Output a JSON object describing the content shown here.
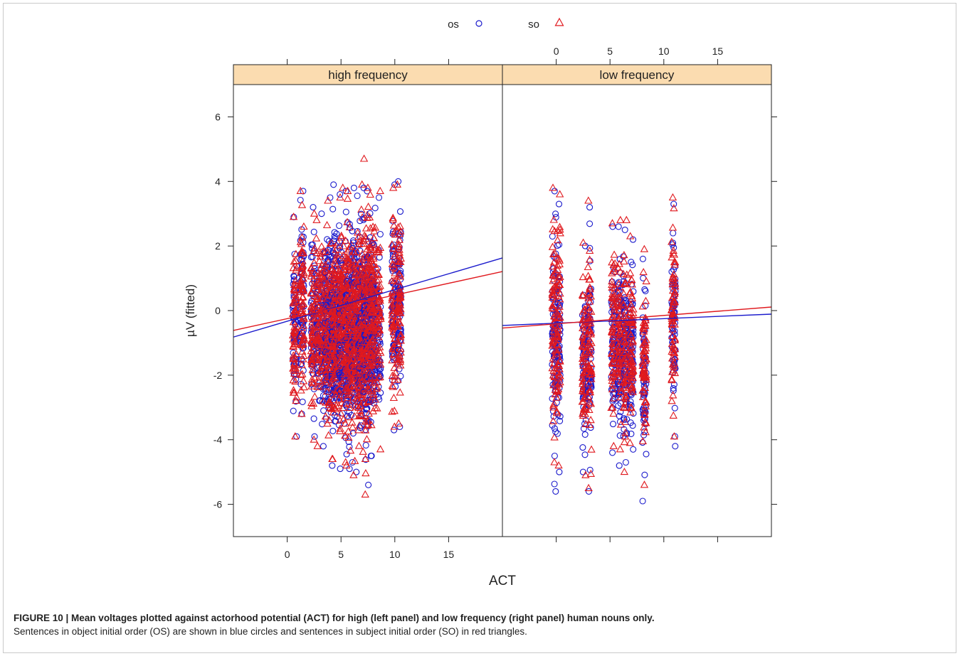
{
  "chart_data": {
    "type": "scatter",
    "xlabel": "ACT",
    "ylabel": "µV (fitted)",
    "ylim": [
      -7,
      7
    ],
    "xlim": [
      -5,
      20
    ],
    "yticks": [
      "6",
      "4",
      "2",
      "0",
      "-2",
      "-4",
      "-6"
    ],
    "xticks": [
      "0",
      "5",
      "10",
      "15"
    ],
    "legend": {
      "position": "top",
      "entries": [
        {
          "name": "os",
          "marker": "circle",
          "color": "#1a1acc"
        },
        {
          "name": "so",
          "marker": "triangle",
          "color": "#e0191e"
        }
      ]
    },
    "strip_color": "#fbdcb0",
    "panels": [
      {
        "name": "high frequency",
        "columns": [
          {
            "x": 0.7,
            "os": [
              -3.9,
              2.9
            ],
            "so": [
              -3.9,
              2.9
            ]
          },
          {
            "x": 1.4,
            "os": [
              -3.2,
              3.7
            ],
            "so": [
              -3.2,
              3.7
            ]
          },
          {
            "x": 2.4,
            "os": [
              -3.9,
              3.2
            ],
            "so": [
              -4.0,
              3.0
            ]
          },
          {
            "x": 3.2,
            "os": [
              -4.2,
              3.0
            ],
            "so": [
              -4.2,
              2.8
            ]
          },
          {
            "x": 4.0,
            "os": [
              -4.8,
              3.5
            ],
            "so": [
              -4.6,
              3.4
            ]
          },
          {
            "x": 4.6,
            "os": [
              -4.9,
              3.9
            ],
            "so": [
              -4.6,
              3.5
            ]
          },
          {
            "x": 5.3,
            "os": [
              -4.9,
              3.6
            ],
            "so": [
              -4.8,
              3.8
            ]
          },
          {
            "x": 5.9,
            "os": [
              -4.7,
              3.7
            ],
            "so": [
              -4.7,
              3.7
            ]
          },
          {
            "x": 6.5,
            "os": [
              -5.0,
              3.8
            ],
            "so": [
              -5.1,
              3.9
            ]
          },
          {
            "x": 7.1,
            "os": [
              -5.4,
              3.8
            ],
            "so": [
              -5.7,
              3.8
            ]
          },
          {
            "x": 7.6,
            "os": [
              -4.5,
              3.7
            ],
            "so": [
              -4.6,
              4.7
            ]
          },
          {
            "x": 8.2,
            "os": [
              -4.5,
              3.5
            ],
            "so": [
              -4.3,
              3.7
            ]
          },
          {
            "x": 9.9,
            "os": [
              -3.7,
              3.9
            ],
            "so": [
              -3.6,
              3.8
            ]
          },
          {
            "x": 10.4,
            "os": [
              -3.6,
              4.0
            ],
            "so": [
              -3.5,
              3.9
            ]
          }
        ],
        "fits": [
          {
            "series": "os",
            "intercept": -0.33,
            "slope": 0.098
          },
          {
            "series": "so",
            "intercept": -0.25,
            "slope": 0.073
          }
        ]
      },
      {
        "name": "low frequency",
        "columns": [
          {
            "x": -0.2,
            "os": [
              -5.6,
              3.7
            ],
            "so": [
              -4.7,
              3.8
            ]
          },
          {
            "x": 0.2,
            "os": [
              -5.0,
              3.3
            ],
            "so": [
              -4.8,
              3.6
            ]
          },
          {
            "x": 2.6,
            "os": [
              -5.0,
              2.0
            ],
            "so": [
              -5.1,
              2.1
            ]
          },
          {
            "x": 3.1,
            "os": [
              -5.6,
              3.2
            ],
            "so": [
              -5.5,
              3.4
            ]
          },
          {
            "x": 5.3,
            "os": [
              -4.4,
              2.6
            ],
            "so": [
              -4.2,
              2.7
            ]
          },
          {
            "x": 5.9,
            "os": [
              -4.8,
              2.6
            ],
            "so": [
              -4.3,
              2.8
            ]
          },
          {
            "x": 6.4,
            "os": [
              -4.7,
              2.5
            ],
            "so": [
              -5.0,
              2.8
            ]
          },
          {
            "x": 7.0,
            "os": [
              -4.3,
              2.2
            ],
            "so": [
              -4.1,
              2.3
            ]
          },
          {
            "x": 8.2,
            "os": [
              -5.9,
              1.6
            ],
            "so": [
              -5.4,
              1.9
            ]
          },
          {
            "x": 10.9,
            "os": [
              -4.2,
              3.3
            ],
            "so": [
              -3.9,
              3.5
            ]
          }
        ],
        "fits": [
          {
            "series": "os",
            "intercept": -0.39,
            "slope": 0.014
          },
          {
            "series": "so",
            "intercept": -0.41,
            "slope": 0.026
          }
        ]
      }
    ]
  },
  "caption": {
    "title": "FIGURE 10 | Mean voltages plotted against actorhood potential (ACT) for high (left panel) and low frequency (right panel) human nouns only.",
    "text": "Sentences in object initial order (OS) are shown in blue circles and sentences in subject initial order (SO) in red triangles."
  }
}
